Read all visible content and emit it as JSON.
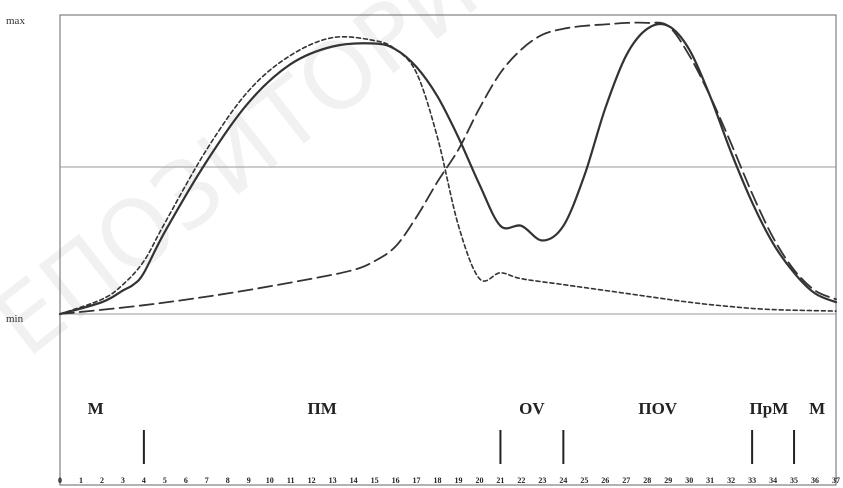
{
  "chart_data": {
    "type": "line",
    "title": "",
    "xlabel": "",
    "ylabel": "",
    "y_axis_labels": {
      "max": "max",
      "min": "min"
    },
    "x_ticks": [
      0,
      1,
      2,
      3,
      4,
      5,
      6,
      7,
      8,
      9,
      10,
      11,
      12,
      13,
      14,
      15,
      16,
      17,
      18,
      19,
      20,
      21,
      22,
      23,
      24,
      25,
      26,
      27,
      28,
      29,
      30,
      31,
      32,
      33,
      34,
      35,
      36,
      37
    ],
    "xlim": [
      0,
      37
    ],
    "ylim": [
      0,
      1
    ],
    "grid": "one horizontal reference line at mid level",
    "series": [
      {
        "style": "solid",
        "color": "#333333",
        "x": [
          0,
          2,
          3,
          3.5,
          4,
          5,
          7,
          9,
          11,
          13,
          15,
          16,
          17,
          18,
          19,
          20,
          21,
          22,
          23,
          24,
          25,
          26,
          27,
          28,
          29,
          30,
          31,
          32,
          33,
          34,
          35,
          36,
          37
        ],
        "y": [
          0.0,
          0.04,
          0.08,
          0.1,
          0.14,
          0.28,
          0.52,
          0.72,
          0.85,
          0.91,
          0.92,
          0.9,
          0.84,
          0.74,
          0.6,
          0.44,
          0.3,
          0.3,
          0.25,
          0.3,
          0.47,
          0.7,
          0.88,
          0.97,
          0.98,
          0.9,
          0.74,
          0.55,
          0.38,
          0.24,
          0.14,
          0.07,
          0.04
        ]
      },
      {
        "style": "short-dash",
        "color": "#333333",
        "x": [
          0,
          2,
          3,
          4,
          5,
          7,
          9,
          11,
          13,
          15,
          16,
          17,
          18,
          19,
          20,
          21,
          22,
          24,
          26,
          28,
          30,
          32,
          34,
          37
        ],
        "y": [
          0.0,
          0.05,
          0.1,
          0.18,
          0.31,
          0.56,
          0.76,
          0.88,
          0.94,
          0.93,
          0.9,
          0.82,
          0.6,
          0.3,
          0.12,
          0.14,
          0.12,
          0.1,
          0.08,
          0.06,
          0.04,
          0.025,
          0.015,
          0.01
        ]
      },
      {
        "style": "long-dash",
        "color": "#333333",
        "x": [
          0,
          4,
          8,
          12,
          14,
          15,
          16,
          17,
          18,
          19,
          20,
          21,
          22,
          23,
          24,
          25,
          26,
          27,
          28,
          29,
          30,
          31,
          32,
          33,
          34,
          35,
          36,
          37
        ],
        "y": [
          0.0,
          0.03,
          0.07,
          0.12,
          0.15,
          0.18,
          0.23,
          0.33,
          0.45,
          0.56,
          0.7,
          0.82,
          0.9,
          0.95,
          0.97,
          0.98,
          0.985,
          0.99,
          0.99,
          0.98,
          0.88,
          0.74,
          0.58,
          0.41,
          0.26,
          0.15,
          0.08,
          0.05
        ]
      }
    ],
    "phases": [
      {
        "label": "M",
        "from": 0,
        "to": 4
      },
      {
        "label": "ПМ",
        "from": 4,
        "to": 21
      },
      {
        "label": "OV",
        "from": 21,
        "to": 24
      },
      {
        "label": "ПОV",
        "from": 24,
        "to": 33
      },
      {
        "label": "ПрМ",
        "from": 33,
        "to": 35
      },
      {
        "label": "M",
        "from": 35,
        "to": 37
      }
    ],
    "phase_boundaries": [
      4,
      21,
      24,
      33,
      35
    ]
  }
}
